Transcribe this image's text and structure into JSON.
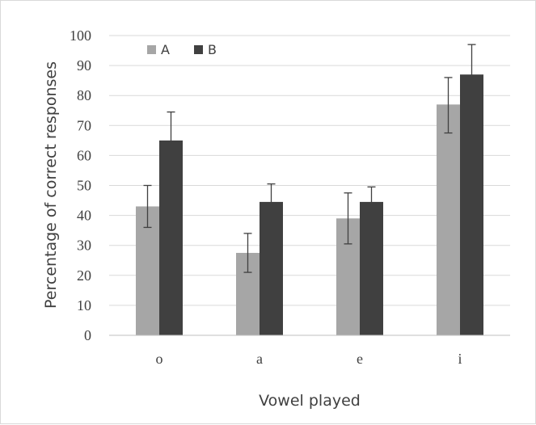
{
  "chart_data": {
    "type": "bar",
    "title": "",
    "xlabel": "Vowel played",
    "ylabel": "Percentage of correct responses",
    "categories": [
      "o",
      "a",
      "e",
      "i"
    ],
    "ylim": [
      0,
      100
    ],
    "yticks": [
      0,
      10,
      20,
      30,
      40,
      50,
      60,
      70,
      80,
      90,
      100
    ],
    "grid": true,
    "legend_position": "top-left",
    "series": [
      {
        "name": "A",
        "color": "#a6a6a6",
        "values": [
          43,
          27.5,
          39,
          77
        ],
        "error_low": [
          36,
          21,
          30.5,
          67.5
        ],
        "error_high": [
          50,
          34,
          47.5,
          86
        ]
      },
      {
        "name": "B",
        "color": "#404040",
        "values": [
          65,
          44.5,
          44.5,
          87
        ],
        "error_low": [
          55,
          38,
          40,
          77
        ],
        "error_high": [
          74.5,
          50.5,
          49.5,
          97
        ]
      }
    ]
  }
}
